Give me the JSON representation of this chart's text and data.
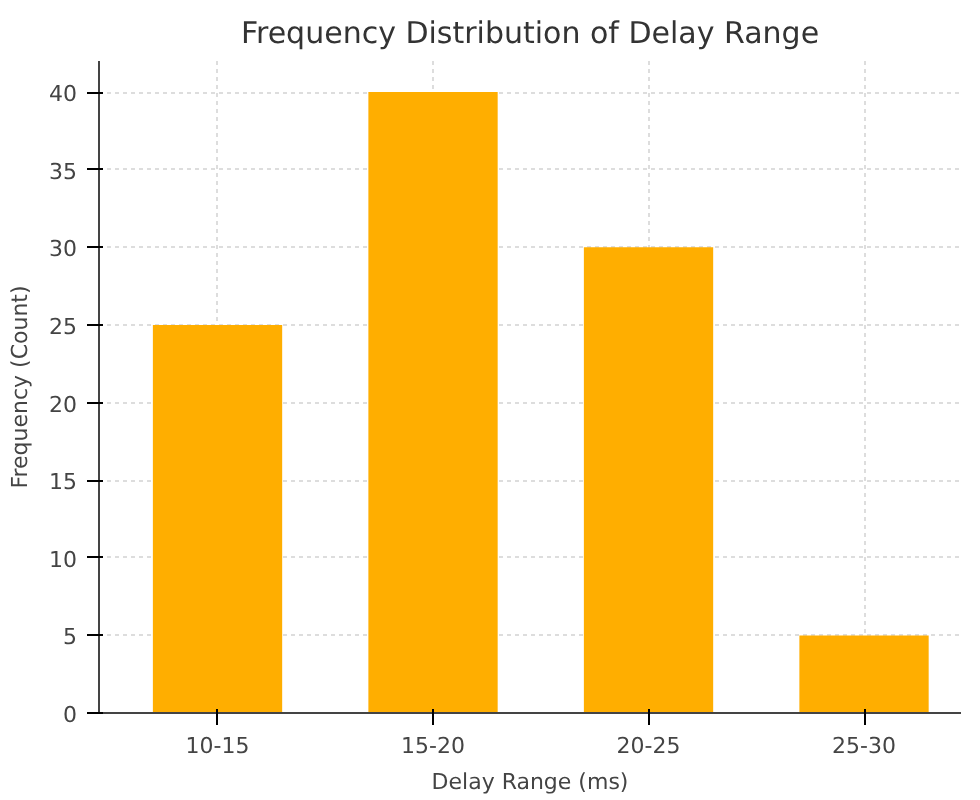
{
  "chart_data": {
    "type": "bar",
    "title": "Frequency Distribution of Delay Range",
    "xlabel": "Delay Range (ms)",
    "ylabel": "Frequency (Count)",
    "categories": [
      "10-15",
      "15-20",
      "20-25",
      "25-30"
    ],
    "values": [
      25,
      40,
      30,
      5
    ],
    "color": "#ffae00",
    "ylim": [
      0,
      42
    ],
    "yticks": [
      0,
      5,
      10,
      15,
      20,
      25,
      30,
      35,
      40
    ],
    "grid": true
  }
}
